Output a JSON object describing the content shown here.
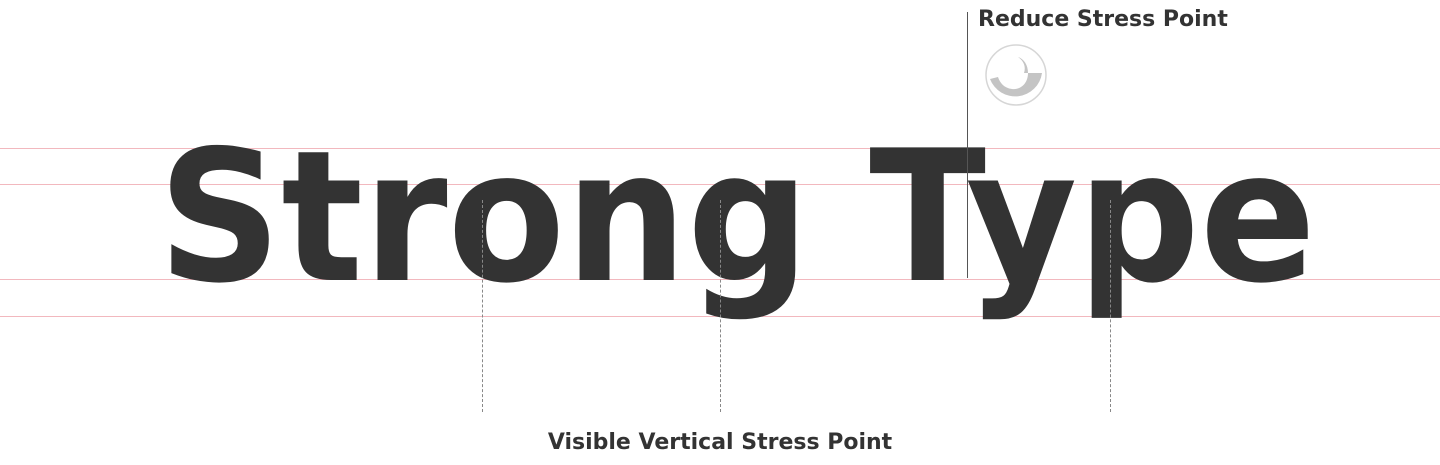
{
  "headline": "Strong Type",
  "top_callout": {
    "label": "Reduce Stress Point",
    "icon": "stress-detail-icon"
  },
  "bottom_callout": {
    "label": "Visible Vertical Stress Point"
  },
  "colors": {
    "text": "#333333",
    "guide_lines": "#f2b8be",
    "detail_fill": "#c4c4c4"
  }
}
